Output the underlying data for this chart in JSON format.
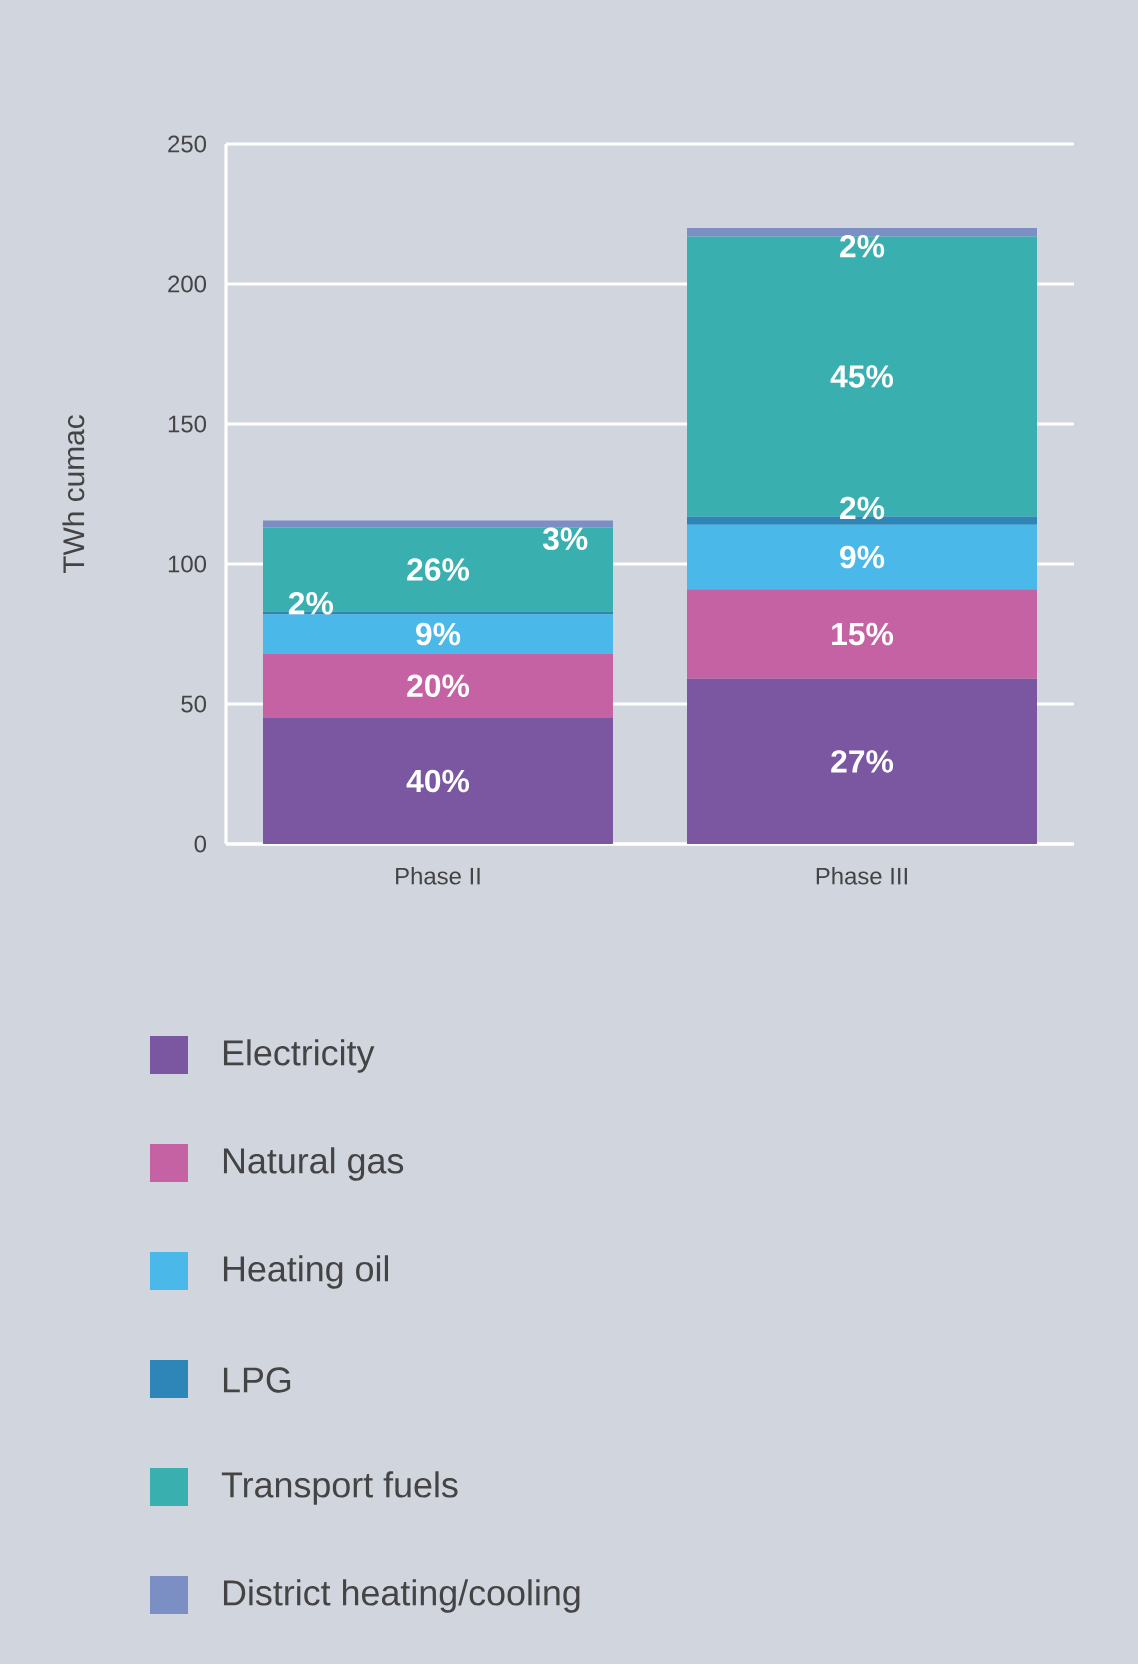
{
  "chart_data": {
    "type": "bar",
    "stacked": true,
    "ylabel": "TWh cumac",
    "categories": [
      "Phase II",
      "Phase III"
    ],
    "ylim": [
      0,
      250
    ],
    "yticks": [
      0,
      50,
      100,
      150,
      200,
      250
    ],
    "grid": "y",
    "legend": "bottom",
    "series": [
      {
        "name": "Electricity",
        "color": "#7a57a0",
        "values": [
          45,
          59
        ]
      },
      {
        "name": "Natural gas",
        "color": "#c462a3",
        "values": [
          23,
          32
        ]
      },
      {
        "name": "Heating oil",
        "color": "#4ab8e8",
        "values": [
          14,
          23
        ]
      },
      {
        "name": "LPG",
        "color": "#2e86b8",
        "values": [
          1,
          3
        ]
      },
      {
        "name": "Transport fuels",
        "color": "#3aafaf",
        "values": [
          30,
          100
        ]
      },
      {
        "name": "District heating/cooling",
        "color": "#7b8fc4",
        "values": [
          2.5,
          3
        ]
      }
    ],
    "annotations": [
      "40%",
      "20%",
      "9%",
      "2%",
      "26%",
      "3%",
      "27%",
      "15%",
      "9%",
      "2%",
      "45%",
      "2%"
    ]
  }
}
